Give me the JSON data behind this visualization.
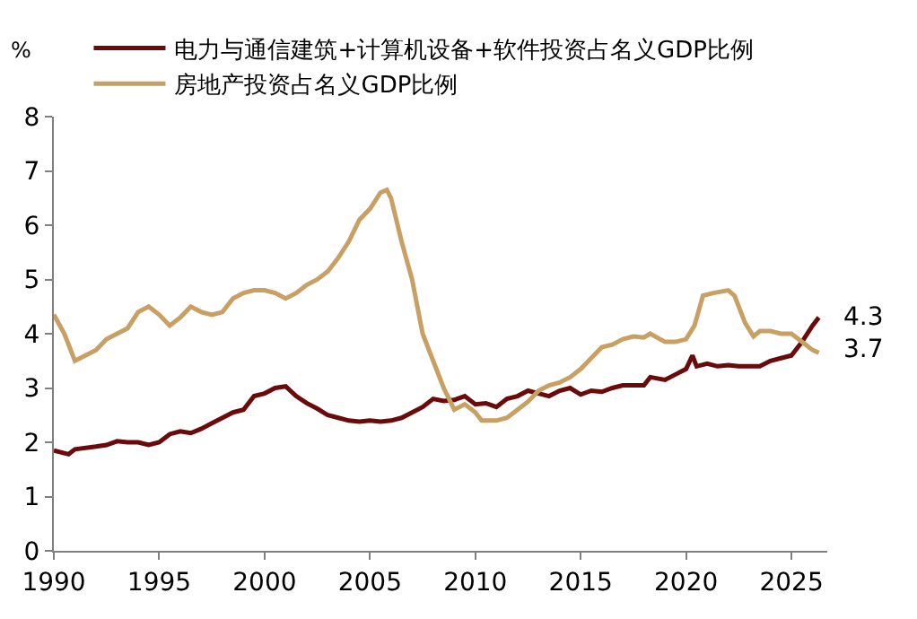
{
  "chart_data": {
    "type": "line",
    "ylabel": "%",
    "xlim": [
      1990,
      2026.7
    ],
    "xticks": [
      1990,
      1995,
      2000,
      2005,
      2010,
      2015,
      2020,
      2025
    ],
    "ylim": [
      0,
      8
    ],
    "yticks": [
      0,
      1,
      2,
      3,
      4,
      5,
      6,
      7,
      8
    ],
    "legend": "top",
    "marker": "none",
    "line_style": "solid",
    "series": [
      {
        "name": "电力与通信建筑+计算机设备+软件投资占名义GDP比例",
        "color": "#6b0a0a",
        "x": [
          1990,
          1990.7,
          1991,
          1992,
          1992.5,
          1993,
          1993.5,
          1994,
          1994.5,
          1995,
          1995.5,
          1996,
          1996.5,
          1997,
          1997.5,
          1998,
          1998.5,
          1999,
          1999.5,
          2000,
          2000.5,
          2001,
          2001.5,
          2002,
          2002.5,
          2003,
          2003.5,
          2004,
          2004.5,
          2005,
          2005.5,
          2006,
          2006.5,
          2007,
          2007.5,
          2008,
          2008.5,
          2009,
          2009.5,
          2010,
          2010.5,
          2011,
          2011.5,
          2012,
          2012.5,
          2013,
          2013.5,
          2014,
          2014.5,
          2015,
          2015.5,
          2016,
          2016.5,
          2017,
          2017.5,
          2018,
          2018.3,
          2019,
          2019.5,
          2020,
          2020.3,
          2020.5,
          2021,
          2021.5,
          2022,
          2022.5,
          2023,
          2023.5,
          2024,
          2024.5,
          2025,
          2025.5,
          2026,
          2026.3
        ],
        "values": [
          1.85,
          1.78,
          1.87,
          1.92,
          1.95,
          2.02,
          2.0,
          2.0,
          1.95,
          2.0,
          2.15,
          2.2,
          2.17,
          2.25,
          2.35,
          2.45,
          2.55,
          2.6,
          2.85,
          2.9,
          3.0,
          3.03,
          2.85,
          2.72,
          2.62,
          2.5,
          2.45,
          2.4,
          2.38,
          2.4,
          2.38,
          2.4,
          2.45,
          2.55,
          2.65,
          2.8,
          2.76,
          2.78,
          2.85,
          2.7,
          2.72,
          2.65,
          2.8,
          2.85,
          2.95,
          2.9,
          2.85,
          2.95,
          3.0,
          2.88,
          2.95,
          2.93,
          3.0,
          3.05,
          3.05,
          3.05,
          3.2,
          3.15,
          3.25,
          3.35,
          3.6,
          3.4,
          3.45,
          3.4,
          3.42,
          3.4,
          3.4,
          3.4,
          3.5,
          3.55,
          3.6,
          3.85,
          4.15,
          4.3
        ]
      },
      {
        "name": "房地产投资占名义GDP比例",
        "color": "#c8a064",
        "x": [
          1990,
          1990.5,
          1991,
          1991.5,
          1992,
          1992.5,
          1993,
          1993.5,
          1994,
          1994.5,
          1995,
          1995.5,
          1996,
          1996.5,
          1997,
          1997.5,
          1998,
          1998.5,
          1999,
          1999.5,
          2000,
          2000.5,
          2001,
          2001.5,
          2002,
          2002.5,
          2003,
          2003.5,
          2004,
          2004.5,
          2005,
          2005.5,
          2005.8,
          2006,
          2006.5,
          2007,
          2007.5,
          2008,
          2008.5,
          2009,
          2009.5,
          2010,
          2010.3,
          2011,
          2011.5,
          2012,
          2012.5,
          2013,
          2013.5,
          2014,
          2014.5,
          2015,
          2015.5,
          2016,
          2016.5,
          2017,
          2017.5,
          2018,
          2018.3,
          2019,
          2019.5,
          2020,
          2020.4,
          2020.8,
          2021.3,
          2022,
          2022.3,
          2022.8,
          2023.2,
          2023.5,
          2024,
          2024.5,
          2025,
          2025.5,
          2026,
          2026.3
        ],
        "values": [
          4.35,
          4.0,
          3.5,
          3.6,
          3.7,
          3.9,
          4.0,
          4.1,
          4.4,
          4.5,
          4.35,
          4.15,
          4.3,
          4.5,
          4.4,
          4.35,
          4.4,
          4.65,
          4.75,
          4.8,
          4.8,
          4.75,
          4.65,
          4.75,
          4.9,
          5.0,
          5.15,
          5.4,
          5.7,
          6.1,
          6.3,
          6.6,
          6.65,
          6.5,
          5.7,
          5.0,
          4.0,
          3.5,
          3.0,
          2.6,
          2.7,
          2.55,
          2.4,
          2.4,
          2.45,
          2.6,
          2.75,
          2.95,
          3.05,
          3.1,
          3.2,
          3.35,
          3.55,
          3.75,
          3.8,
          3.9,
          3.95,
          3.93,
          4.0,
          3.85,
          3.85,
          3.9,
          4.15,
          4.7,
          4.75,
          4.8,
          4.7,
          4.2,
          3.95,
          4.05,
          4.05,
          4.0,
          4.0,
          3.85,
          3.7,
          3.65
        ]
      }
    ],
    "annotations": [
      {
        "text": "4.3",
        "x": 2026.3,
        "y": 4.3
      },
      {
        "text": "3.7",
        "x": 2026.3,
        "y": 3.7
      }
    ]
  }
}
